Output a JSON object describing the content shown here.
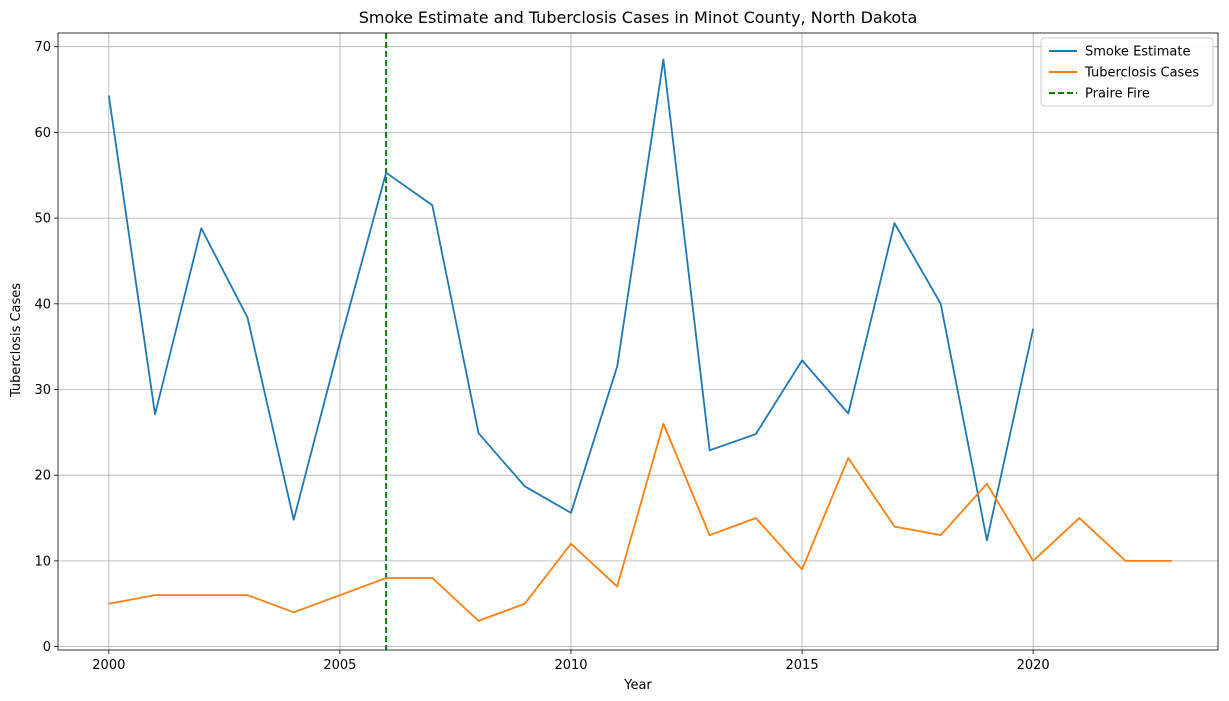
{
  "chart_data": {
    "type": "line",
    "title": "Smoke Estimate and Tuberclosis Cases in Minot County, North Dakota",
    "xlabel": "Year",
    "ylabel": "Tuberclosis Cases",
    "xlim": [
      1998.9,
      2024.0
    ],
    "ylim": [
      -0.4,
      71.6
    ],
    "xticks": [
      2000,
      2005,
      2010,
      2015,
      2020
    ],
    "yticks": [
      0,
      10,
      20,
      30,
      40,
      50,
      60,
      70
    ],
    "grid": true,
    "legend_position": "top-right",
    "series": [
      {
        "name": "Smoke Estimate",
        "color": "#1f77b4",
        "style": "solid",
        "x": [
          2000,
          2001,
          2002,
          2003,
          2004,
          2005,
          2006,
          2007,
          2008,
          2009,
          2010,
          2011,
          2012,
          2013,
          2014,
          2015,
          2016,
          2017,
          2018,
          2019,
          2020
        ],
        "y": [
          64.3,
          27.1,
          48.8,
          38.4,
          14.8,
          35.5,
          55.3,
          51.5,
          24.9,
          18.7,
          15.6,
          32.7,
          68.5,
          22.9,
          24.8,
          33.4,
          27.2,
          49.4,
          40.0,
          12.4,
          37.1
        ]
      },
      {
        "name": "Tuberclosis Cases",
        "color": "#ff7f0e",
        "style": "solid",
        "x": [
          2000,
          2001,
          2002,
          2003,
          2004,
          2005,
          2006,
          2007,
          2008,
          2009,
          2010,
          2011,
          2012,
          2013,
          2014,
          2015,
          2016,
          2017,
          2018,
          2019,
          2020,
          2021,
          2022,
          2023
        ],
        "y": [
          5,
          6,
          6,
          6,
          4,
          6,
          8,
          8,
          3,
          5,
          12,
          7,
          26,
          13,
          15,
          9,
          22,
          14,
          13,
          19,
          10,
          15,
          10,
          10
        ]
      }
    ],
    "vlines": [
      {
        "name": "Praire Fire",
        "x": 2006,
        "color": "#008000",
        "style": "dashed"
      }
    ]
  }
}
